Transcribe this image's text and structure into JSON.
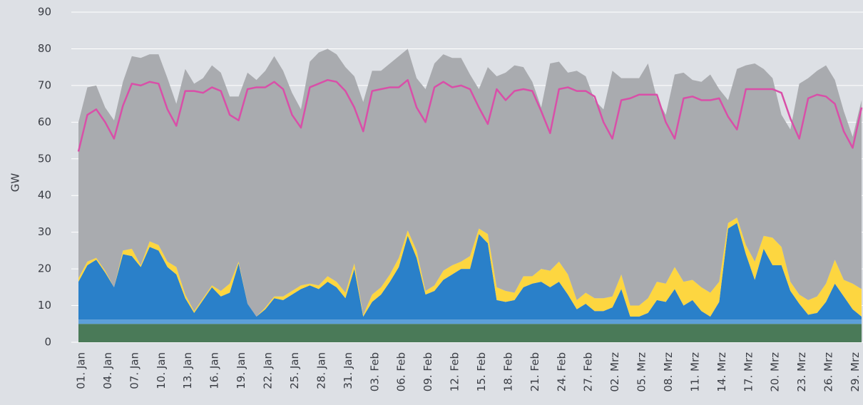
{
  "chart_data": {
    "type": "area",
    "stacked": true,
    "y_label": "GW",
    "categories": [
      "01. Jan",
      null,
      null,
      "04. Jan",
      null,
      null,
      "07. Jan",
      null,
      null,
      "10. Jan",
      null,
      null,
      "13. Jan",
      null,
      null,
      "16. Jan",
      null,
      null,
      "19. Jan",
      null,
      null,
      "22. Jan",
      null,
      null,
      "25. Jan",
      null,
      null,
      "28. Jan",
      null,
      null,
      "31. Jan",
      null,
      null,
      "03. Feb",
      null,
      null,
      "06. Feb",
      null,
      null,
      "09. Feb",
      null,
      null,
      "12. Feb",
      null,
      null,
      "15. Feb",
      null,
      null,
      "18. Feb",
      null,
      null,
      "21. Feb",
      null,
      null,
      "24. Feb",
      null,
      null,
      "27. Feb",
      null,
      null,
      "02. Mrz",
      null,
      null,
      "05. Mrz",
      null,
      null,
      "08. Mrz",
      null,
      null,
      "11. Mrz",
      null,
      null,
      "14. Mrz",
      null,
      null,
      "17. Mrz",
      null,
      null,
      "20. Mrz",
      null,
      null,
      "23. Mrz",
      null,
      null,
      "26. Mrz",
      null,
      null,
      "29. Mrz",
      null
    ],
    "series": [
      {
        "color": "#4a7a58",
        "values": [
          5,
          5,
          5,
          5,
          5,
          5,
          5,
          5,
          5,
          5,
          5,
          5,
          5,
          5,
          5,
          5,
          5,
          5,
          5,
          5,
          5,
          5,
          5,
          5,
          5,
          5,
          5,
          5,
          5,
          5,
          5,
          5,
          5,
          5,
          5,
          5,
          5,
          5,
          5,
          5,
          5,
          5,
          5,
          5,
          5,
          5,
          5,
          5,
          5,
          5,
          5,
          5,
          5,
          5,
          5,
          5,
          5,
          5,
          5,
          5,
          5,
          5,
          5,
          5,
          5,
          5,
          5,
          5,
          5,
          5,
          5,
          5,
          5,
          5,
          5,
          5,
          5,
          5,
          5,
          5,
          5,
          5,
          5,
          5,
          5,
          5,
          5,
          5,
          5
        ]
      },
      {
        "color": "#5c9fd9",
        "values": [
          1.2,
          1.2,
          1.2,
          1.2,
          1.2,
          1.2,
          1.2,
          1.2,
          1.2,
          1.2,
          1.2,
          1.2,
          1.2,
          1.2,
          1.2,
          1.2,
          1.2,
          1.2,
          1.2,
          1.2,
          1.2,
          1.2,
          1.2,
          1.2,
          1.2,
          1.2,
          1.2,
          1.2,
          1.2,
          1.2,
          1.2,
          1.2,
          1.2,
          1.2,
          1.2,
          1.2,
          1.2,
          1.2,
          1.2,
          1.2,
          1.2,
          1.2,
          1.2,
          1.2,
          1.2,
          1.2,
          1.2,
          1.2,
          1.2,
          1.2,
          1.2,
          1.2,
          1.2,
          1.2,
          1.2,
          1.2,
          1.2,
          1.2,
          1.2,
          1.2,
          1.2,
          1.2,
          1.2,
          1.2,
          1.2,
          1.2,
          1.2,
          1.2,
          1.2,
          1.2,
          1.2,
          1.2,
          1.2,
          1.2,
          1.2,
          1.2,
          1.2,
          1.2,
          1.2,
          1.2,
          1.2,
          1.2,
          1.2,
          1.2,
          1.2,
          1.2,
          1.2,
          1.2,
          1.2
        ]
      },
      {
        "color": "#2a80c9",
        "values": [
          10.3,
          14.8,
          16.3,
          12.8,
          8.8,
          17.8,
          17.3,
          14.3,
          19.8,
          18.8,
          14.3,
          12.3,
          5.8,
          1.8,
          5.3,
          8.8,
          6.3,
          7.3,
          15.3,
          4.3,
          0.8,
          2.8,
          5.8,
          5.3,
          6.8,
          8.3,
          9.3,
          8.3,
          10.3,
          8.8,
          5.8,
          13.8,
          0.8,
          4.8,
          6.8,
          10.3,
          14.3,
          22.8,
          16.8,
          6.8,
          7.8,
          10.8,
          12.3,
          13.8,
          13.8,
          23.3,
          20.8,
          5.3,
          4.8,
          5.3,
          8.8,
          9.8,
          10.3,
          8.8,
          10.3,
          6.8,
          2.8,
          4.3,
          2.3,
          2.3,
          3.3,
          8.3,
          0.8,
          0.8,
          1.8,
          5.3,
          4.8,
          8.3,
          3.8,
          5.3,
          2.3,
          0.8,
          4.8,
          24.8,
          26.3,
          17.8,
          10.8,
          19.3,
          14.8,
          14.8,
          7.8,
          4.3,
          1.3,
          1.8,
          4.8,
          9.8,
          6.3,
          2.8,
          0.8
        ]
      },
      {
        "color": "#fdd640",
        "values": [
          1,
          1,
          0.5,
          0.5,
          0,
          1,
          2,
          0.5,
          1.5,
          1.5,
          1.5,
          2,
          1,
          0.5,
          0.5,
          0.5,
          1.5,
          2.5,
          0.5,
          0,
          0,
          0.5,
          0.5,
          1,
          1,
          1,
          0.5,
          1,
          1.5,
          1.5,
          1.5,
          1.5,
          0.5,
          2,
          2,
          2,
          2.5,
          1.5,
          2,
          1,
          1.5,
          2.5,
          2.5,
          2,
          3.5,
          1.5,
          2.5,
          3.5,
          3,
          2,
          3,
          2,
          3.5,
          4.5,
          5.5,
          5.5,
          2.5,
          3,
          3.5,
          3.5,
          3,
          4,
          3,
          3,
          4,
          5,
          5,
          6,
          6.5,
          5.5,
          6.5,
          6.5,
          5.5,
          1.5,
          1.5,
          2.5,
          5,
          3.5,
          7.5,
          5,
          2.5,
          2.5,
          4,
          4.5,
          5,
          6.5,
          4.5,
          7,
          7.5
        ]
      },
      {
        "color": "#a9abaf",
        "values": [
          42.5,
          47.5,
          47,
          44.5,
          45.5,
          46,
          52.5,
          56.5,
          51,
          52,
          50,
          44.5,
          61.5,
          62,
          60,
          60,
          59.5,
          51,
          45,
          63,
          64.5,
          64.5,
          65.5,
          61.5,
          54,
          48,
          60.5,
          63.5,
          62,
          62,
          61.5,
          51,
          58,
          61,
          59,
          57.5,
          55,
          49.5,
          47,
          55,
          60.5,
          59,
          56.5,
          55.5,
          49.5,
          38,
          45.5,
          57.5,
          59.5,
          62,
          57,
          53,
          44,
          56.5,
          54.5,
          55,
          62.5,
          59,
          54,
          51.5,
          61.5,
          53.5,
          62,
          62,
          64,
          50,
          46,
          52.5,
          57,
          54.5,
          56,
          59.5,
          52.5,
          33.5,
          40.5,
          49,
          54,
          45.5,
          43.5,
          36,
          41.5,
          57.5,
          60.5,
          61.5,
          59.5,
          49,
          46,
          40,
          51.5
        ]
      },
      {
        "type": "line",
        "color": "#d94fa8",
        "values": [
          52,
          62,
          63.5,
          60,
          55.5,
          64.5,
          70.5,
          70,
          71,
          70.5,
          63.5,
          59,
          68.5,
          68.5,
          68,
          69.5,
          68.5,
          62,
          60.5,
          69,
          69.5,
          69.5,
          71,
          69,
          62,
          58.5,
          69.5,
          70.5,
          71.5,
          71,
          68.5,
          64,
          57.5,
          68.5,
          69,
          69.5,
          69.5,
          71.5,
          64,
          60,
          69.5,
          71,
          69.5,
          70,
          69,
          64,
          59.5,
          69,
          66,
          68.5,
          69,
          68.5,
          63,
          57,
          69,
          69.5,
          68.5,
          68.5,
          67,
          60,
          55.5,
          66,
          66.5,
          67.5,
          67.5,
          67.5,
          60,
          55.5,
          66.5,
          67,
          66,
          66,
          66.5,
          61.5,
          58,
          69,
          69,
          69,
          69,
          68,
          61,
          55.5,
          66.5,
          67.5,
          67,
          65,
          57.5,
          53,
          64
        ]
      }
    ],
    "ylim": [
      0,
      90
    ],
    "yticks": [
      0,
      10,
      20,
      30,
      40,
      50,
      60,
      70,
      80,
      90
    ],
    "grid": true
  }
}
